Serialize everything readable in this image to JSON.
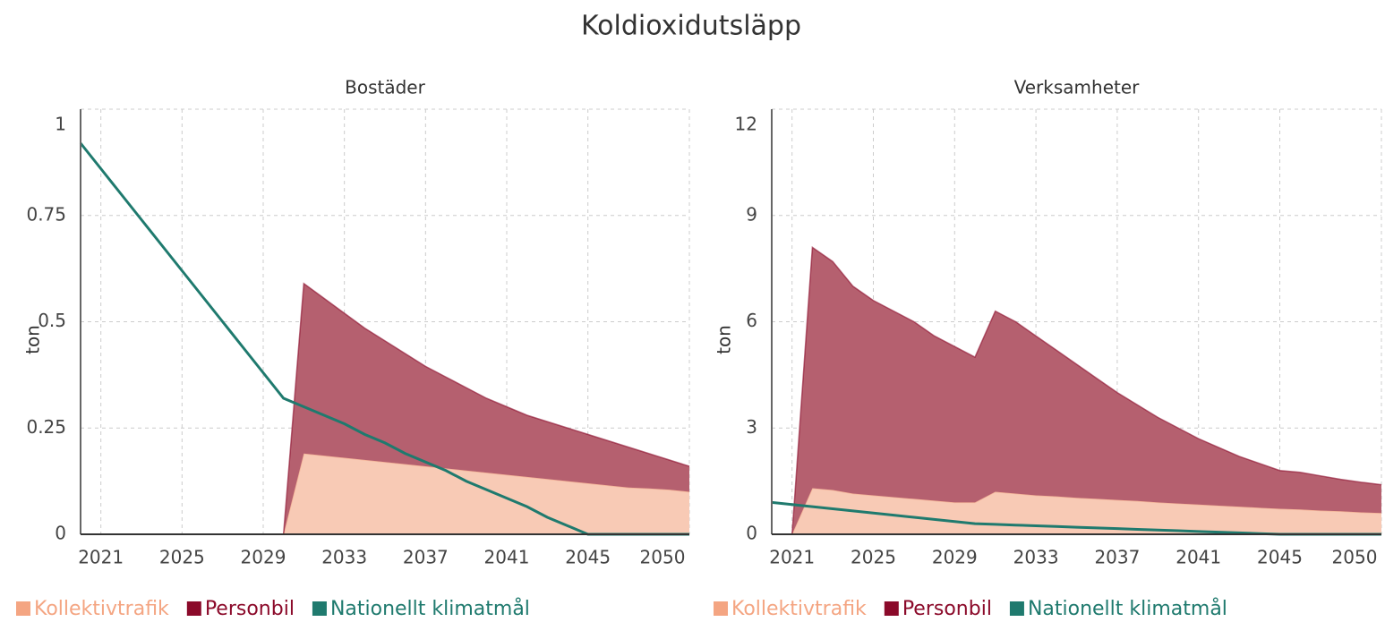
{
  "title": "Koldioxidutsläpp",
  "chart_data": [
    {
      "type": "area",
      "title": "Bostäder",
      "ylabel": "ton",
      "stacked": true,
      "grid": true,
      "x": [
        2020,
        2021,
        2022,
        2023,
        2024,
        2025,
        2026,
        2027,
        2028,
        2029,
        2030,
        2031,
        2032,
        2033,
        2034,
        2035,
        2036,
        2037,
        2038,
        2039,
        2040,
        2041,
        2042,
        2043,
        2044,
        2045,
        2046,
        2047,
        2048,
        2049,
        2050
      ],
      "xlim": [
        2020,
        2050
      ],
      "xticks": [
        2021,
        2025,
        2029,
        2033,
        2037,
        2041,
        2045,
        2050
      ],
      "ylim": [
        0,
        1
      ],
      "yticks": [
        0,
        0.25,
        0.5,
        0.75,
        1
      ],
      "series": [
        {
          "name": "Kollektivtrafik",
          "color": "#f4a582",
          "fill": "#f8cab5",
          "values": [
            0,
            0,
            0,
            0,
            0,
            0,
            0,
            0,
            0,
            0,
            0,
            0.19,
            0.185,
            0.18,
            0.175,
            0.17,
            0.165,
            0.16,
            0.155,
            0.15,
            0.145,
            0.14,
            0.135,
            0.13,
            0.125,
            0.12,
            0.115,
            0.11,
            0.108,
            0.105,
            0.1
          ]
        },
        {
          "name": "Personbil",
          "color": "#8b0a2a",
          "fill": "#b5606f",
          "values": [
            0,
            0,
            0,
            0,
            0,
            0,
            0,
            0,
            0,
            0,
            0,
            0.4,
            0.37,
            0.34,
            0.31,
            0.285,
            0.26,
            0.235,
            0.215,
            0.195,
            0.175,
            0.16,
            0.145,
            0.135,
            0.125,
            0.115,
            0.105,
            0.095,
            0.082,
            0.07,
            0.06
          ]
        },
        {
          "name": "Nationellt klimatmål",
          "color": "#1f7a6e",
          "type": "line",
          "values": [
            0.92,
            0.86,
            0.8,
            0.74,
            0.68,
            0.62,
            0.56,
            0.5,
            0.44,
            0.38,
            0.32,
            0.3,
            0.28,
            0.26,
            0.235,
            0.215,
            0.19,
            0.17,
            0.15,
            0.125,
            0.105,
            0.085,
            0.065,
            0.04,
            0.02,
            0,
            0,
            0,
            0,
            0,
            0
          ]
        }
      ]
    },
    {
      "type": "area",
      "title": "Verksamheter",
      "ylabel": "ton",
      "stacked": true,
      "grid": true,
      "x": [
        2020,
        2021,
        2022,
        2023,
        2024,
        2025,
        2026,
        2027,
        2028,
        2029,
        2030,
        2031,
        2032,
        2033,
        2034,
        2035,
        2036,
        2037,
        2038,
        2039,
        2040,
        2041,
        2042,
        2043,
        2044,
        2045,
        2046,
        2047,
        2048,
        2049,
        2050
      ],
      "xlim": [
        2020,
        2050
      ],
      "xticks": [
        2021,
        2025,
        2029,
        2033,
        2037,
        2041,
        2045,
        2050
      ],
      "ylim": [
        0,
        12
      ],
      "yticks": [
        0,
        3,
        6,
        9,
        12
      ],
      "series": [
        {
          "name": "Kollektivtrafik",
          "color": "#f4a582",
          "fill": "#f8cab5",
          "values": [
            0,
            0,
            1.3,
            1.25,
            1.15,
            1.1,
            1.05,
            1.0,
            0.95,
            0.9,
            0.9,
            1.2,
            1.15,
            1.1,
            1.07,
            1.03,
            1.0,
            0.97,
            0.94,
            0.9,
            0.87,
            0.84,
            0.81,
            0.78,
            0.75,
            0.72,
            0.7,
            0.67,
            0.65,
            0.62,
            0.6
          ]
        },
        {
          "name": "Personbil",
          "color": "#8b0a2a",
          "fill": "#b5606f",
          "values": [
            0,
            0,
            6.8,
            6.45,
            5.85,
            5.5,
            5.25,
            5.0,
            4.65,
            4.4,
            4.1,
            5.1,
            4.85,
            4.5,
            4.13,
            3.77,
            3.4,
            3.03,
            2.71,
            2.4,
            2.13,
            1.86,
            1.64,
            1.42,
            1.25,
            1.08,
            1.05,
            0.98,
            0.9,
            0.85,
            0.8
          ]
        },
        {
          "name": "Nationellt klimatmål",
          "color": "#1f7a6e",
          "type": "line",
          "values": [
            0.9,
            0.84,
            0.78,
            0.72,
            0.66,
            0.6,
            0.54,
            0.48,
            0.42,
            0.36,
            0.3,
            0.28,
            0.26,
            0.24,
            0.22,
            0.2,
            0.18,
            0.16,
            0.14,
            0.12,
            0.1,
            0.08,
            0.06,
            0.04,
            0.02,
            0,
            0,
            0,
            0,
            0,
            0
          ]
        }
      ]
    }
  ]
}
